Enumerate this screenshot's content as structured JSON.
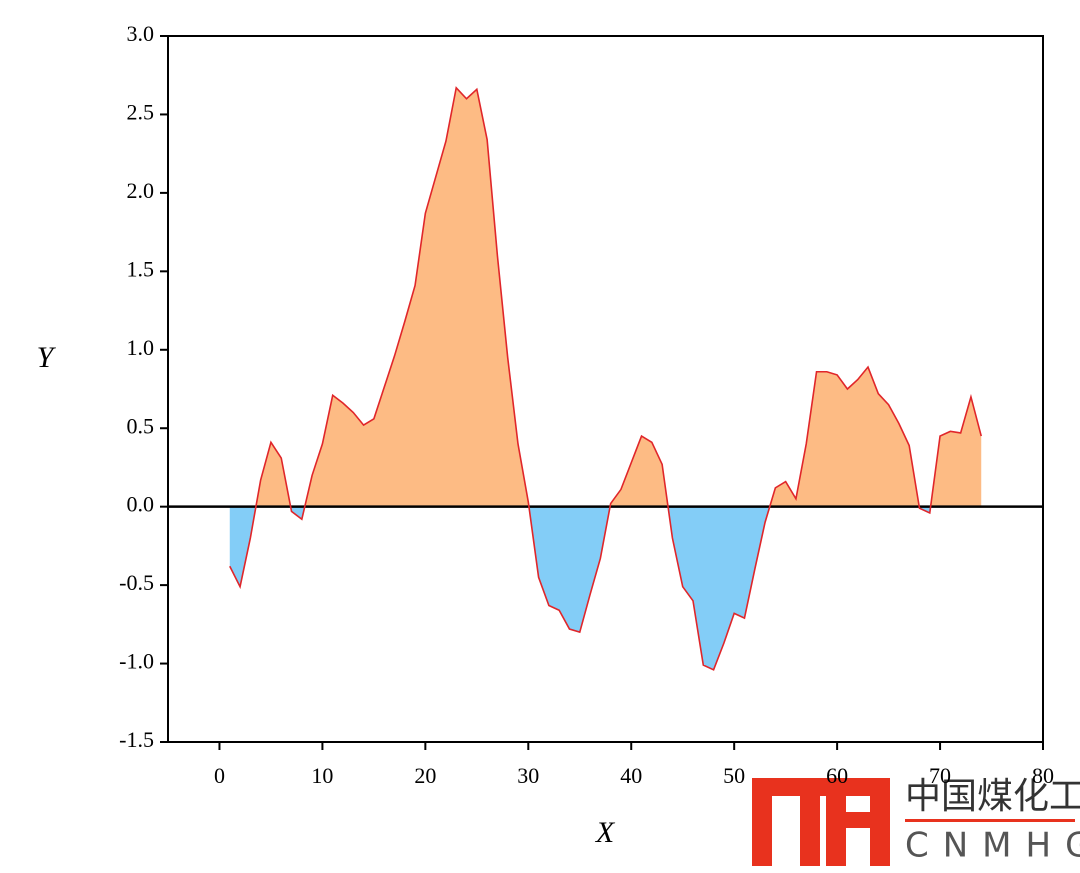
{
  "chart_data": {
    "type": "area",
    "x_label": "X",
    "y_label": "Y",
    "x": [
      1,
      2,
      3,
      4,
      5,
      6,
      7,
      8,
      9,
      10,
      11,
      12,
      13,
      14,
      15,
      16,
      17,
      18,
      19,
      20,
      21,
      22,
      23,
      24,
      25,
      26,
      27,
      28,
      29,
      30,
      31,
      32,
      33,
      34,
      35,
      36,
      37,
      38,
      39,
      40,
      41,
      42,
      43,
      44,
      45,
      46,
      47,
      48,
      49,
      50,
      51,
      52,
      53,
      54,
      55,
      56,
      57,
      58,
      59,
      60,
      61,
      62,
      63,
      64,
      65,
      66,
      67,
      68,
      69,
      70,
      71,
      72,
      73,
      74
    ],
    "values": [
      -0.38,
      -0.51,
      -0.2,
      0.17,
      0.41,
      0.31,
      -0.03,
      -0.08,
      0.2,
      0.4,
      0.71,
      0.66,
      0.6,
      0.52,
      0.56,
      0.76,
      0.96,
      1.18,
      1.41,
      1.87,
      2.1,
      2.33,
      2.67,
      2.6,
      2.66,
      2.34,
      1.6,
      0.95,
      0.4,
      0.03,
      -0.45,
      -0.63,
      -0.66,
      -0.78,
      -0.8,
      -0.56,
      -0.33,
      0.02,
      0.11,
      0.28,
      0.45,
      0.41,
      0.27,
      -0.2,
      -0.51,
      -0.6,
      -1.01,
      -1.04,
      -0.87,
      -0.68,
      -0.71,
      -0.4,
      -0.1,
      0.12,
      0.16,
      0.05,
      0.4,
      0.86,
      0.86,
      0.84,
      0.75,
      0.81,
      0.89,
      0.72,
      0.65,
      0.53,
      0.39,
      -0.01,
      -0.04,
      0.45,
      0.48,
      0.47,
      0.7,
      0.45
    ],
    "line_color": "#e0262a",
    "positive_color": "#fdbb84",
    "negative_color": "#83cdf7",
    "baseline_color": "#000000",
    "xlim": [
      -5,
      80
    ],
    "xticks": [
      0,
      10,
      20,
      30,
      40,
      50,
      60,
      70,
      80
    ],
    "ylim": [
      -1.5,
      3.0
    ],
    "yticks": [
      {
        "value": -1.5,
        "label": "-1.5"
      },
      {
        "value": -1.0,
        "label": "-1.0"
      },
      {
        "value": -0.5,
        "label": "-0.5"
      },
      {
        "value": 0,
        "label": "0.0"
      },
      {
        "value": 0.5,
        "label": "0.5"
      },
      {
        "value": 1.0,
        "label": "1.0"
      },
      {
        "value": 1.5,
        "label": "1.5"
      },
      {
        "value": 2.0,
        "label": "2.0"
      },
      {
        "value": 2.5,
        "label": "2.5"
      },
      {
        "value": 3.0,
        "label": "3.0"
      }
    ]
  },
  "watermark": {
    "title": "中国煤化工",
    "subtitle": "CNMHG"
  }
}
